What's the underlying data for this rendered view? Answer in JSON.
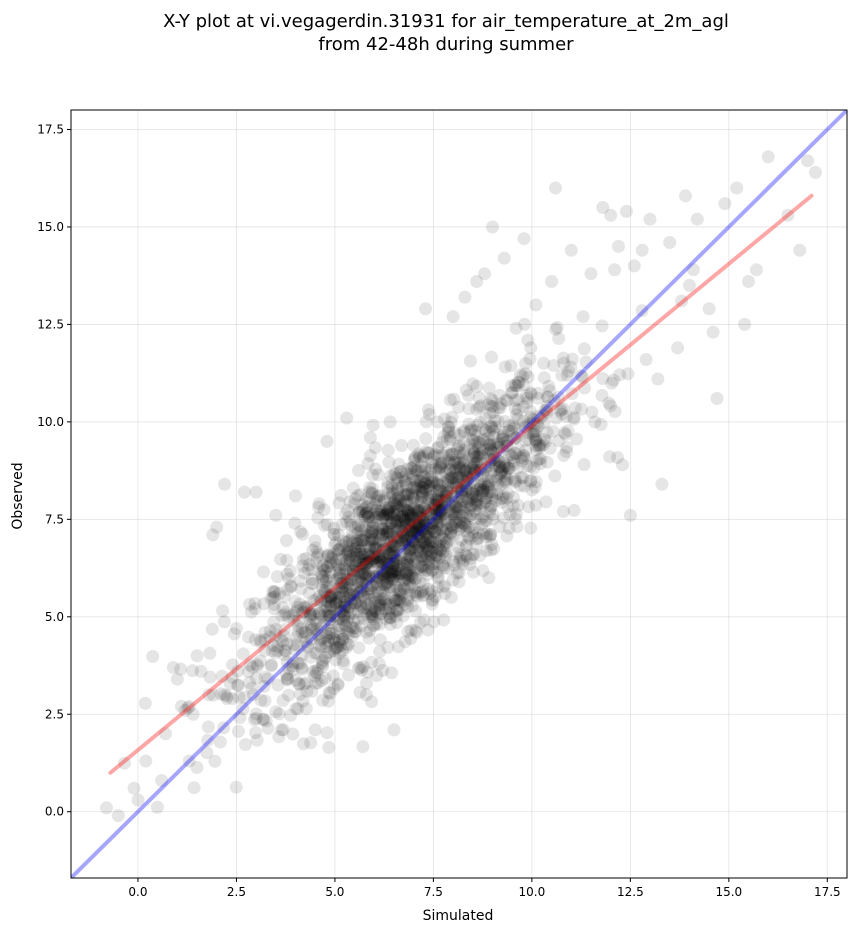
{
  "chart_data": {
    "type": "scatter",
    "title_line1": "X-Y plot at vi.vegagerdin.31931 for air_temperature_at_2m_agl",
    "title_line2": "from 42-48h during summer",
    "xlabel": "Simulated",
    "ylabel": "Observed",
    "xlim": [
      -1.7,
      18.0
    ],
    "ylim": [
      -1.7,
      18.0
    ],
    "x_ticks": [
      0.0,
      2.5,
      5.0,
      7.5,
      10.0,
      12.5,
      15.0,
      17.5
    ],
    "x_tick_labels": [
      "0.0",
      "2.5",
      "5.0",
      "7.5",
      "10.0",
      "12.5",
      "15.0",
      "17.5"
    ],
    "y_ticks": [
      0.0,
      2.5,
      5.0,
      7.5,
      10.0,
      12.5,
      15.0,
      17.5
    ],
    "y_tick_labels": [
      "0.0",
      "2.5",
      "5.0",
      "7.5",
      "10.0",
      "12.5",
      "15.0",
      "17.5"
    ],
    "grid": true,
    "point_color": "#000000",
    "point_alpha": 0.1,
    "point_count": 2100,
    "cluster": {
      "center": [
        6.8,
        7.0
      ],
      "x_spread": 1.9,
      "slope": 0.83,
      "residual_spread": 1.1
    },
    "outlier_points": [
      [
        -0.8,
        0.1
      ],
      [
        -0.5,
        -0.1
      ],
      [
        -0.1,
        0.6
      ],
      [
        0.0,
        0.3
      ],
      [
        0.2,
        1.3
      ],
      [
        0.6,
        0.8
      ],
      [
        0.9,
        3.7
      ],
      [
        1.0,
        3.4
      ],
      [
        1.2,
        2.6
      ],
      [
        1.3,
        1.3
      ],
      [
        1.4,
        2.5
      ],
      [
        1.5,
        4.0
      ],
      [
        1.8,
        3.0
      ],
      [
        1.9,
        7.1
      ],
      [
        2.0,
        7.3
      ],
      [
        2.2,
        8.4
      ],
      [
        2.5,
        4.7
      ],
      [
        2.7,
        8.2
      ],
      [
        3.0,
        8.2
      ],
      [
        3.0,
        2.4
      ],
      [
        3.5,
        7.6
      ],
      [
        4.0,
        8.1
      ],
      [
        4.5,
        2.1
      ],
      [
        4.8,
        9.5
      ],
      [
        5.3,
        10.1
      ],
      [
        5.8,
        3.0
      ],
      [
        6.5,
        2.1
      ],
      [
        7.3,
        12.9
      ],
      [
        8.0,
        12.7
      ],
      [
        8.3,
        13.2
      ],
      [
        8.6,
        13.6
      ],
      [
        8.8,
        13.8
      ],
      [
        9.0,
        15.0
      ],
      [
        9.3,
        14.2
      ],
      [
        9.8,
        14.7
      ],
      [
        10.1,
        13.0
      ],
      [
        10.5,
        13.6
      ],
      [
        10.6,
        16.0
      ],
      [
        10.8,
        7.7
      ],
      [
        11.0,
        14.4
      ],
      [
        11.3,
        12.7
      ],
      [
        11.5,
        13.8
      ],
      [
        11.8,
        15.5
      ],
      [
        12.0,
        15.3
      ],
      [
        12.1,
        13.9
      ],
      [
        12.2,
        14.5
      ],
      [
        12.3,
        8.9
      ],
      [
        12.4,
        15.4
      ],
      [
        12.5,
        7.6
      ],
      [
        12.6,
        14.0
      ],
      [
        12.8,
        14.4
      ],
      [
        13.0,
        15.2
      ],
      [
        13.2,
        11.1
      ],
      [
        13.3,
        8.4
      ],
      [
        13.5,
        14.6
      ],
      [
        13.7,
        11.9
      ],
      [
        13.9,
        15.8
      ],
      [
        14.0,
        13.5
      ],
      [
        14.2,
        15.2
      ],
      [
        14.5,
        12.9
      ],
      [
        14.6,
        12.3
      ],
      [
        14.7,
        10.6
      ],
      [
        14.9,
        15.6
      ],
      [
        15.2,
        16.0
      ],
      [
        15.5,
        13.6
      ],
      [
        15.7,
        13.9
      ],
      [
        16.0,
        16.8
      ],
      [
        16.5,
        15.3
      ],
      [
        16.8,
        14.4
      ],
      [
        17.2,
        16.4
      ],
      [
        17.0,
        16.7
      ],
      [
        15.4,
        12.5
      ],
      [
        14.1,
        13.9
      ],
      [
        13.8,
        13.1
      ],
      [
        12.9,
        11.6
      ],
      [
        11.6,
        10.0
      ],
      [
        10.9,
        11.2
      ],
      [
        9.6,
        12.4
      ],
      [
        4.6,
        7.9
      ],
      [
        3.8,
        3.4
      ],
      [
        2.4,
        2.9
      ],
      [
        1.6,
        3.6
      ],
      [
        0.7,
        2.0
      ],
      [
        5.9,
        9.6
      ],
      [
        6.4,
        10.0
      ]
    ],
    "trend_line": {
      "color": "#ff0000",
      "alpha": 0.35,
      "x": [
        -0.7,
        17.1
      ],
      "y": [
        1.0,
        15.8
      ]
    },
    "identity_line": {
      "color": "#0000ff",
      "alpha": 0.35,
      "x": [
        -1.7,
        18.0
      ],
      "y": [
        -1.7,
        18.0
      ]
    }
  }
}
